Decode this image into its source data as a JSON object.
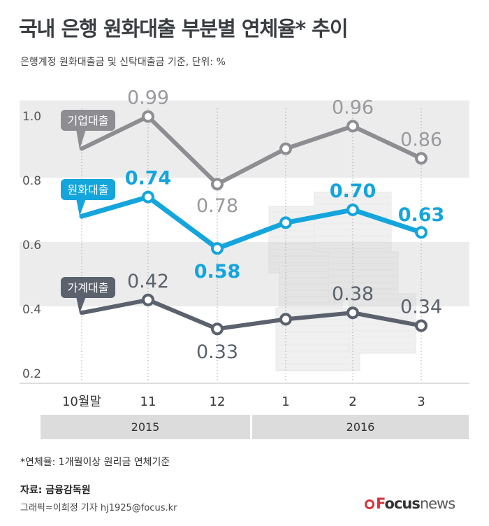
{
  "title": "국내 은행 원화대출 부분별 연체율* 추이",
  "subtitle": "은행계정 원화대출금 및 신탁대출금 기준, 단위: %",
  "footnote": "*연체율: 1개월이상 원리금 연체기준",
  "source": "자료: 금융감독원",
  "credit": "그래픽=이희정 기자 hj1925@focus.kr",
  "logo": {
    "prefix": "F",
    "main": "ocus",
    "suffix": "news"
  },
  "chart_data": {
    "type": "line",
    "categories": [
      "10월말",
      "11",
      "12",
      "1",
      "2",
      "3"
    ],
    "year_groups": [
      {
        "label": "2015",
        "categories": [
          "10월말",
          "11",
          "12"
        ]
      },
      {
        "label": "2016",
        "categories": [
          "1",
          "2",
          "3"
        ]
      }
    ],
    "yticks": [
      "0.2",
      "0.4",
      "0.6",
      "0.8",
      "1.0"
    ],
    "ylim": [
      0.2,
      1.0
    ],
    "series": [
      {
        "name": "기업대출",
        "values": [
          0.89,
          0.99,
          0.78,
          0.89,
          0.96,
          0.86
        ],
        "labels": [
          "",
          "0.99",
          "0.78",
          "",
          "0.96",
          "0.86"
        ],
        "color": "#8e8d92",
        "label_color": "#9a999e"
      },
      {
        "name": "원화대출",
        "values": [
          0.68,
          0.74,
          0.58,
          0.66,
          0.7,
          0.63
        ],
        "labels": [
          "",
          "0.74",
          "0.58",
          "",
          "0.70",
          "0.63"
        ],
        "color": "#14a5dc",
        "label_color": "#14a5dc"
      },
      {
        "name": "가계대출",
        "values": [
          0.38,
          0.42,
          0.33,
          0.36,
          0.38,
          0.34
        ],
        "labels": [
          "",
          "0.42",
          "0.33",
          "",
          "0.38",
          "0.34"
        ],
        "color": "#5b626d",
        "label_color": "#5b626d"
      }
    ]
  }
}
